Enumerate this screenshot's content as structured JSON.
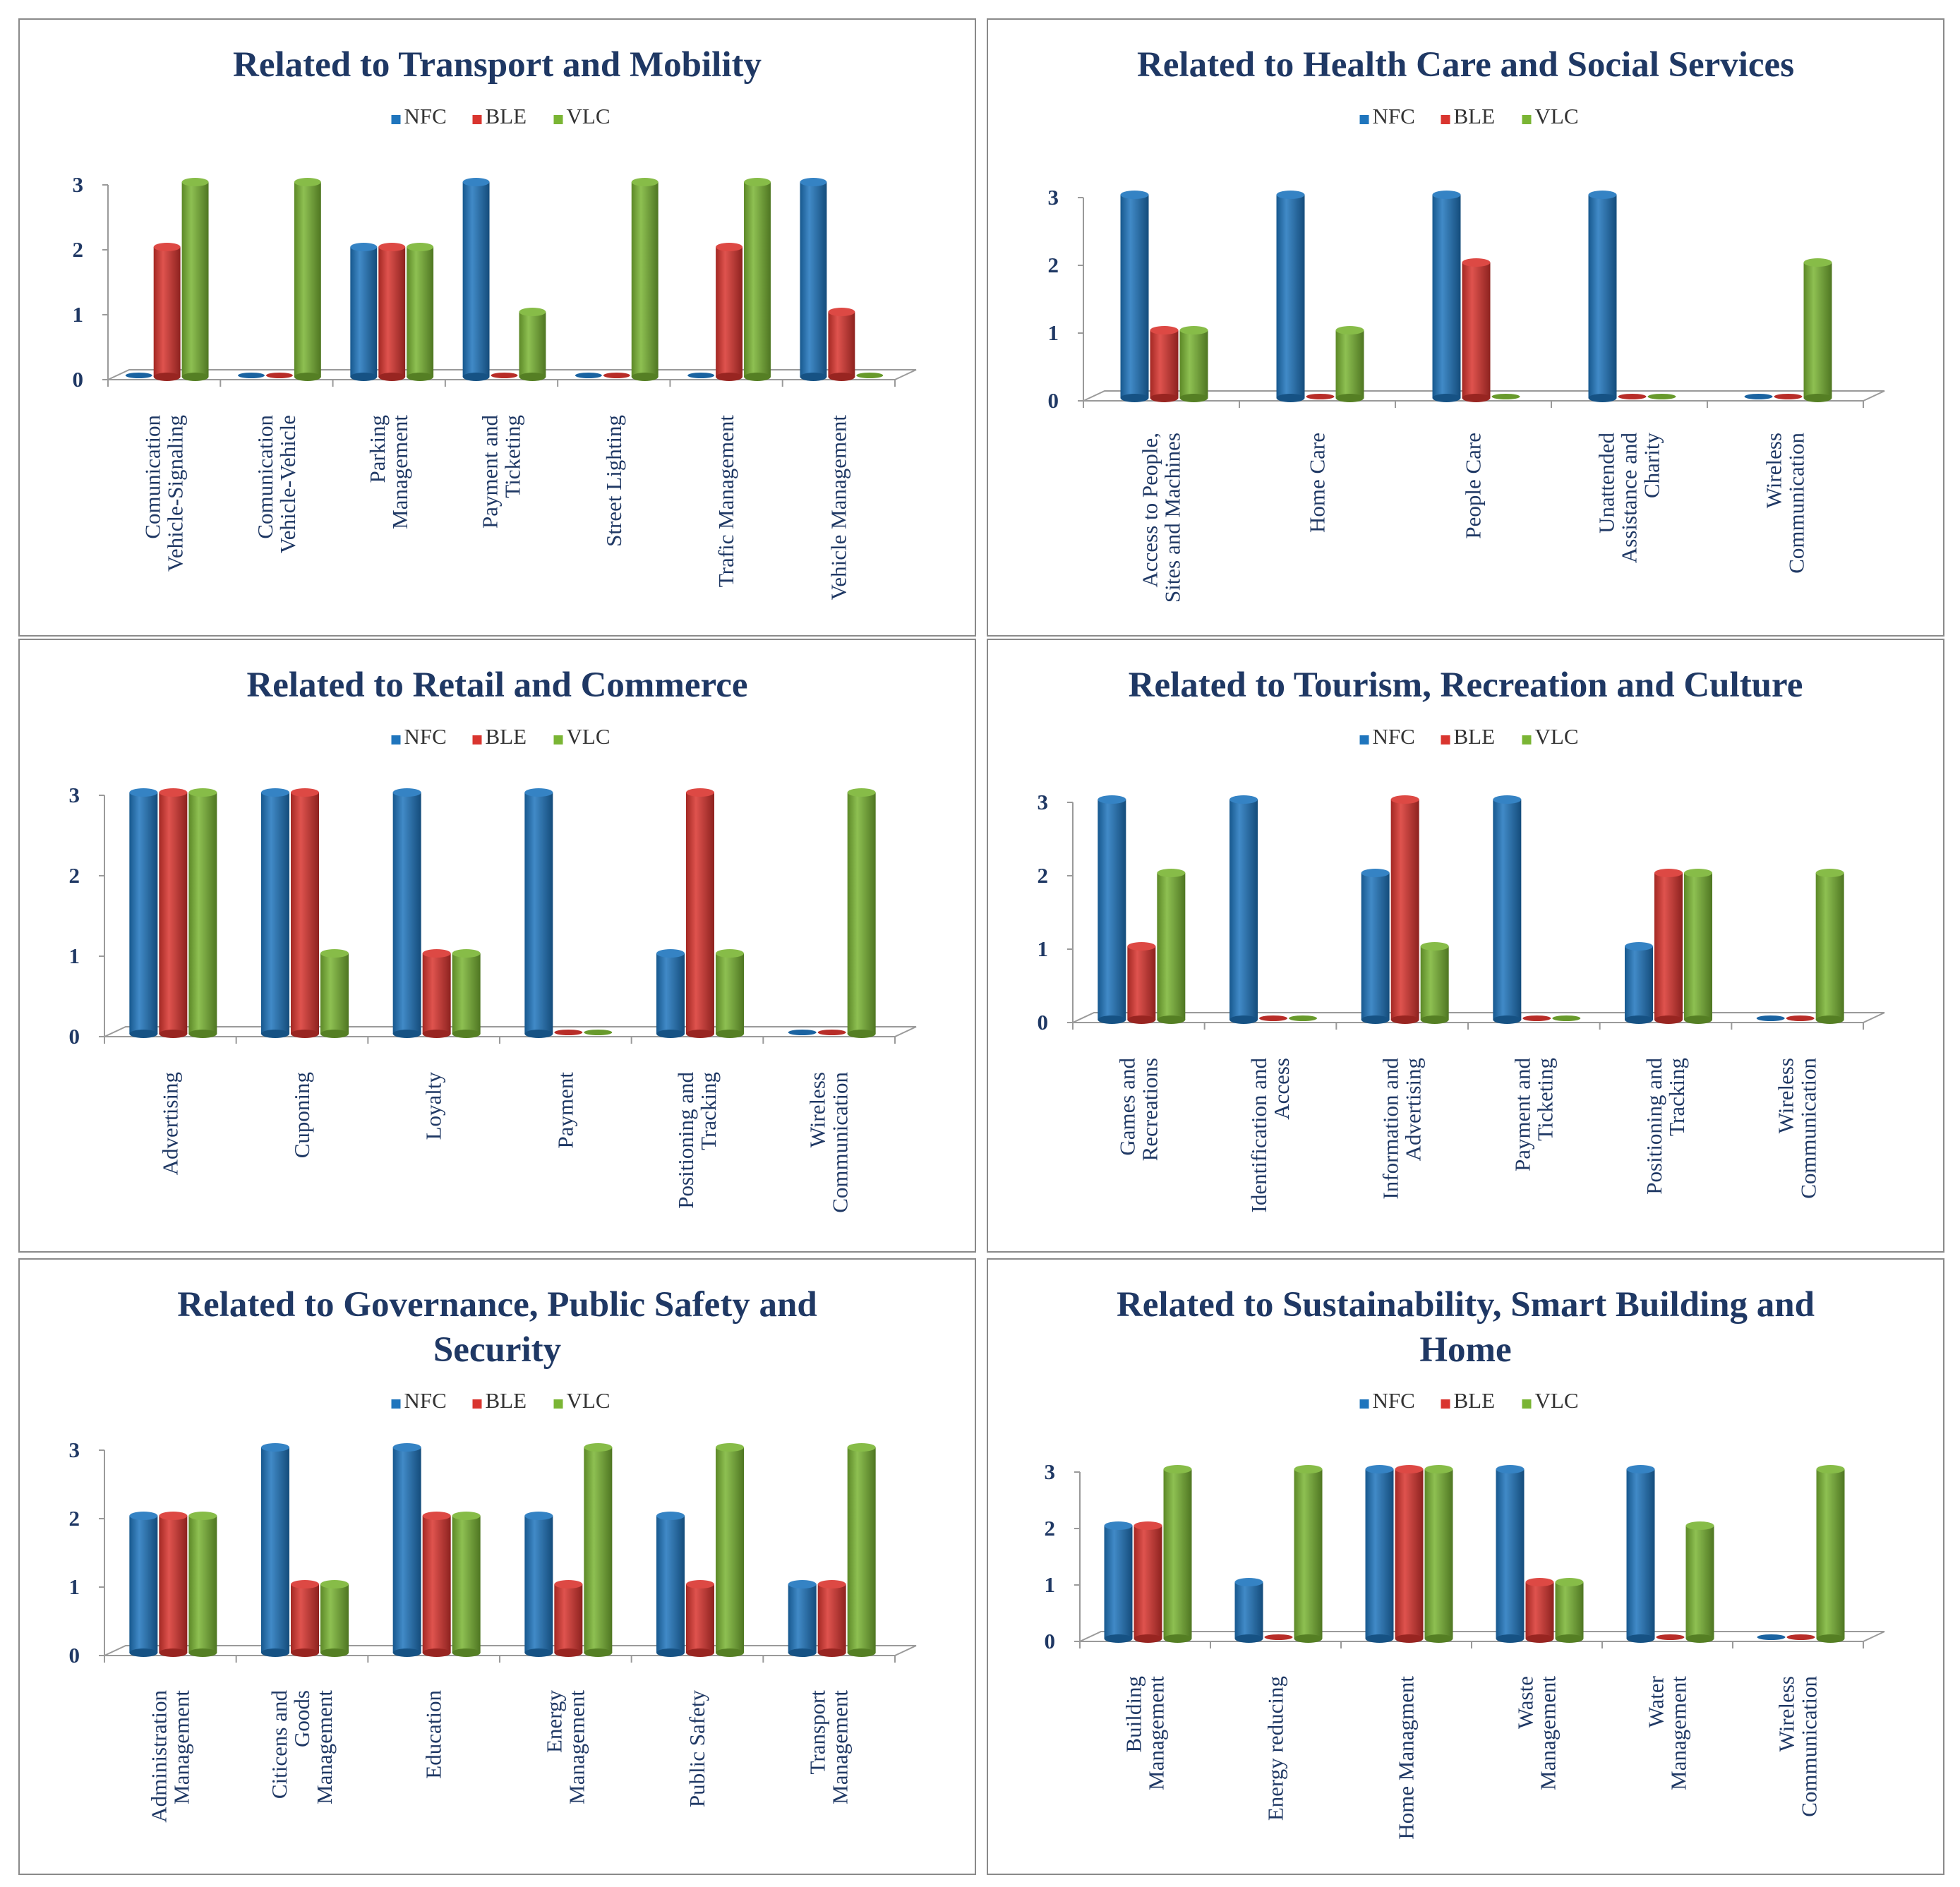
{
  "legend": [
    "NFC",
    "BLE",
    "VLC"
  ],
  "colors": {
    "NFC": "#1f75bd",
    "BLE": "#d9352f",
    "VLC": "#7ab534",
    "title": "#1f3864",
    "border": "#8a8a8a"
  },
  "chart_data": [
    {
      "type": "bar",
      "title": "Related to Transport and Mobility",
      "categories": [
        [
          "Comunication",
          "Vehicle-Signaling"
        ],
        [
          "Comunication",
          "Vehicle-Vehicle"
        ],
        [
          "Parking",
          "Management"
        ],
        [
          "Payment and",
          "Ticketing"
        ],
        [
          "Street Lighting"
        ],
        [
          "Trafic Management"
        ],
        [
          "Vehicle Management"
        ]
      ],
      "series": [
        {
          "name": "NFC",
          "values": [
            0,
            0,
            2,
            3,
            0,
            0,
            3
          ]
        },
        {
          "name": "BLE",
          "values": [
            2,
            0,
            2,
            0,
            0,
            2,
            1
          ]
        },
        {
          "name": "VLC",
          "values": [
            3,
            3,
            2,
            1,
            3,
            3,
            0
          ]
        }
      ],
      "ylim": [
        0,
        3
      ],
      "yticks": [
        "0",
        "1",
        "2",
        "3"
      ]
    },
    {
      "type": "bar",
      "title": "Related to Health Care and Social Services",
      "categories": [
        [
          "Access to People,",
          "Sites and Machines"
        ],
        [
          "Home Care"
        ],
        [
          "People Care"
        ],
        [
          "Unattended",
          "Assistance and",
          "Charity"
        ],
        [
          "Wireless",
          "Communication"
        ]
      ],
      "series": [
        {
          "name": "NFC",
          "values": [
            3,
            3,
            3,
            3,
            0
          ]
        },
        {
          "name": "BLE",
          "values": [
            1,
            0,
            2,
            0,
            0
          ]
        },
        {
          "name": "VLC",
          "values": [
            1,
            1,
            0,
            0,
            2
          ]
        }
      ],
      "ylim": [
        0,
        3
      ],
      "yticks": [
        "0",
        "1",
        "2",
        "3"
      ]
    },
    {
      "type": "bar",
      "title": "Related to Retail and Commerce",
      "categories": [
        [
          "Advertising"
        ],
        [
          "Cuponing"
        ],
        [
          "Loyalty"
        ],
        [
          "Payment"
        ],
        [
          "Positioning and",
          "Tracking"
        ],
        [
          "Wireless",
          "Communication"
        ]
      ],
      "series": [
        {
          "name": "NFC",
          "values": [
            3,
            3,
            3,
            3,
            1,
            0
          ]
        },
        {
          "name": "BLE",
          "values": [
            3,
            3,
            1,
            0,
            3,
            0
          ]
        },
        {
          "name": "VLC",
          "values": [
            3,
            1,
            1,
            0,
            1,
            3
          ]
        }
      ],
      "ylim": [
        0,
        3
      ],
      "yticks": [
        "0",
        "1",
        "2",
        "3"
      ]
    },
    {
      "type": "bar",
      "title": "Related to Tourism, Recreation and Culture",
      "categories": [
        [
          "Games and",
          "Recreations"
        ],
        [
          "Identification and",
          "Access"
        ],
        [
          "Information and",
          "Advertising"
        ],
        [
          "Payment and",
          "Ticketing"
        ],
        [
          "Positioning and",
          "Tracking"
        ],
        [
          "Wireless",
          "Communication"
        ]
      ],
      "series": [
        {
          "name": "NFC",
          "values": [
            3,
            3,
            2,
            3,
            1,
            0
          ]
        },
        {
          "name": "BLE",
          "values": [
            1,
            0,
            3,
            0,
            2,
            0
          ]
        },
        {
          "name": "VLC",
          "values": [
            2,
            0,
            1,
            0,
            2,
            2
          ]
        }
      ],
      "ylim": [
        0,
        3
      ],
      "yticks": [
        "0",
        "1",
        "2",
        "3"
      ]
    },
    {
      "type": "bar",
      "title": "Related to Governance, Public Safety and Security",
      "categories": [
        [
          "Administration",
          "Management"
        ],
        [
          "Citicens and",
          "Goods",
          "Management"
        ],
        [
          "Education"
        ],
        [
          "Energy",
          "Management"
        ],
        [
          "Public Safety"
        ],
        [
          "Transport",
          "Management"
        ]
      ],
      "series": [
        {
          "name": "NFC",
          "values": [
            2,
            3,
            3,
            2,
            2,
            1
          ]
        },
        {
          "name": "BLE",
          "values": [
            2,
            1,
            2,
            1,
            1,
            1
          ]
        },
        {
          "name": "VLC",
          "values": [
            2,
            1,
            2,
            3,
            3,
            3
          ]
        }
      ],
      "ylim": [
        0,
        3
      ],
      "yticks": [
        "0",
        "1",
        "2",
        "3"
      ]
    },
    {
      "type": "bar",
      "title": "Related to Sustainability, Smart Building and Home",
      "categories": [
        [
          "Building",
          "Management"
        ],
        [
          "Energy reducing"
        ],
        [
          "Home Managment"
        ],
        [
          "Waste",
          "Management"
        ],
        [
          "Water",
          "Management"
        ],
        [
          "Wireless",
          "Communication"
        ]
      ],
      "series": [
        {
          "name": "NFC",
          "values": [
            2,
            1,
            3,
            3,
            3,
            0
          ]
        },
        {
          "name": "BLE",
          "values": [
            2,
            0,
            3,
            1,
            0,
            0
          ]
        },
        {
          "name": "VLC",
          "values": [
            3,
            3,
            3,
            1,
            2,
            3
          ]
        }
      ],
      "ylim": [
        0,
        3
      ],
      "yticks": [
        "0",
        "1",
        "2",
        "3"
      ]
    }
  ]
}
